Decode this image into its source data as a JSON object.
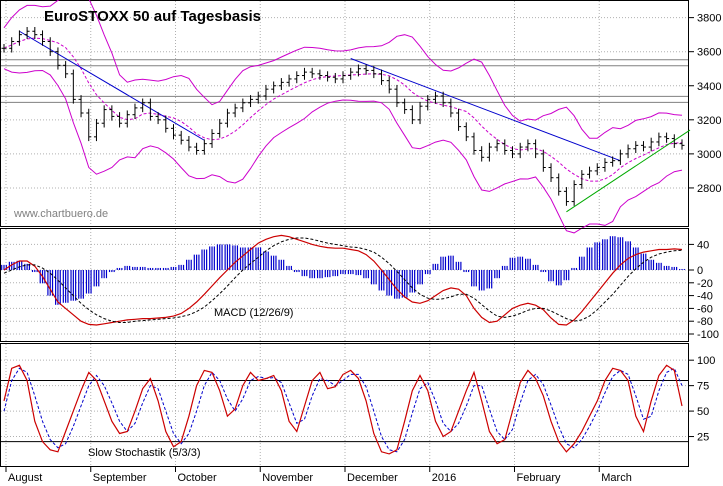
{
  "chart_data": [
    {
      "type": "line",
      "panel": "price",
      "title": "EuroSTOXX 50 auf Tagesbasis",
      "watermark": "www.chartbuero.de",
      "ylim": [
        2600,
        3880
      ],
      "yticks": [
        "2800",
        "3000",
        "3200",
        "3400",
        "3600",
        "3800"
      ],
      "horizontal_lines": [
        3535,
        3535,
        3320,
        3320
      ],
      "colors": {
        "price": "#000000",
        "bollinger": "#cc00cc",
        "trend_down": "#0000cc",
        "trend_up": "#00aa00",
        "sma": "#cc00cc"
      },
      "series": [
        {
          "values": [
            3620,
            3660,
            3700,
            3720,
            3700,
            3660,
            3600,
            3520,
            3470,
            3320,
            3240,
            3100,
            3180,
            3260,
            3220,
            3180,
            3230,
            3270,
            3300,
            3220,
            3200,
            3150,
            3110,
            3080,
            3040,
            3020,
            3060,
            3120,
            3180,
            3240,
            3270,
            3300,
            3320,
            3340,
            3380,
            3400,
            3420,
            3440,
            3460,
            3480,
            3470,
            3460,
            3450,
            3440,
            3460,
            3480,
            3500,
            3490,
            3470,
            3430,
            3380,
            3300,
            3260,
            3200,
            3280,
            3320,
            3340,
            3300,
            3240,
            3160,
            3100,
            3020,
            2980,
            3040,
            3060,
            3020,
            3000,
            3040,
            3060,
            3000,
            2920,
            2860,
            2780,
            2720,
            2820,
            2880,
            2900,
            2920,
            2950,
            2960,
            3000,
            3030,
            3050,
            3040,
            3070,
            3100,
            3090,
            3060,
            3050
          ]
        }
      ]
    },
    {
      "type": "line",
      "panel": "macd",
      "label": "MACD (12/26/9)",
      "ylim": [
        -100,
        50
      ],
      "yticks": [
        "40",
        "0",
        "-20",
        "-40",
        "-60",
        "-80",
        "-100"
      ],
      "colors": {
        "macd": "#cc0000",
        "signal": "#000000",
        "histogram": "#0000cc"
      },
      "series": [
        {
          "values": [
            0,
            8,
            14,
            14,
            6,
            -10,
            -30,
            -50,
            -60,
            -70,
            -80,
            -85,
            -86,
            -84,
            -82,
            -80,
            -78,
            -77,
            -76,
            -76,
            -75,
            -74,
            -72,
            -68,
            -60,
            -50,
            -38,
            -25,
            -12,
            0,
            12,
            22,
            32,
            42,
            48,
            52,
            54,
            52,
            48,
            44,
            40,
            37,
            35,
            34,
            34,
            32,
            30,
            24,
            14,
            0,
            -15,
            -30,
            -42,
            -50,
            -52,
            -48,
            -40,
            -32,
            -28,
            -30,
            -40,
            -60,
            -74,
            -82,
            -80,
            -70,
            -60,
            -55,
            -52,
            -55,
            -62,
            -75,
            -85,
            -86,
            -78,
            -65,
            -50,
            -35,
            -20,
            -5,
            8,
            18,
            24,
            28,
            30,
            32,
            32,
            33,
            32
          ]
        },
        {
          "values": [
            -5,
            0,
            5,
            8,
            8,
            3,
            -5,
            -16,
            -28,
            -40,
            -52,
            -62,
            -70,
            -76,
            -80,
            -82,
            -82,
            -80,
            -79,
            -78,
            -77,
            -76,
            -75,
            -73,
            -70,
            -65,
            -58,
            -48,
            -37,
            -25,
            -12,
            0,
            10,
            20,
            30,
            38,
            44,
            48,
            50,
            50,
            48,
            45,
            42,
            40,
            38,
            36,
            35,
            32,
            28,
            20,
            10,
            -2,
            -15,
            -28,
            -38,
            -44,
            -46,
            -45,
            -42,
            -38,
            -38,
            -44,
            -54,
            -64,
            -72,
            -74,
            -72,
            -68,
            -63,
            -60,
            -60,
            -64,
            -70,
            -76,
            -80,
            -78,
            -72,
            -62,
            -50,
            -38,
            -24,
            -10,
            2,
            12,
            20,
            25,
            28,
            30,
            31
          ]
        }
      ]
    },
    {
      "type": "line",
      "panel": "stochastic",
      "label": "Slow Stochastik (5/3/3)",
      "ylim": [
        0,
        110
      ],
      "yticks": [
        "100",
        "75",
        "50",
        "25"
      ],
      "horizontal_lines": [
        80,
        20
      ],
      "colors": {
        "k": "#cc0000",
        "d": "#0000cc",
        "levels": "#000000"
      },
      "series": [
        {
          "values": [
            60,
            92,
            95,
            80,
            40,
            20,
            12,
            10,
            30,
            50,
            70,
            88,
            80,
            60,
            40,
            28,
            30,
            50,
            72,
            82,
            60,
            30,
            15,
            20,
            45,
            75,
            90,
            88,
            70,
            45,
            52,
            75,
            88,
            80,
            82,
            85,
            70,
            40,
            30,
            55,
            80,
            88,
            72,
            74,
            86,
            90,
            82,
            60,
            28,
            10,
            8,
            12,
            40,
            70,
            85,
            70,
            40,
            25,
            30,
            50,
            70,
            88,
            60,
            30,
            18,
            22,
            50,
            78,
            90,
            82,
            65,
            40,
            20,
            10,
            18,
            30,
            45,
            60,
            80,
            92,
            90,
            80,
            45,
            30,
            60,
            85,
            95,
            90,
            55
          ]
        },
        {
          "values": [
            50,
            80,
            92,
            88,
            65,
            40,
            22,
            14,
            18,
            35,
            55,
            75,
            85,
            75,
            58,
            40,
            30,
            38,
            58,
            75,
            72,
            50,
            28,
            18,
            28,
            50,
            75,
            88,
            80,
            62,
            50,
            62,
            80,
            84,
            82,
            83,
            78,
            58,
            38,
            42,
            65,
            82,
            80,
            75,
            80,
            86,
            86,
            74,
            50,
            25,
            12,
            10,
            22,
            48,
            72,
            78,
            60,
            38,
            30,
            38,
            55,
            75,
            75,
            52,
            30,
            22,
            32,
            58,
            80,
            86,
            76,
            56,
            35,
            18,
            14,
            22,
            35,
            50,
            68,
            84,
            90,
            86,
            65,
            42,
            45,
            70,
            88,
            92,
            75
          ]
        }
      ]
    }
  ],
  "x_axis": {
    "labels": [
      "August",
      "September",
      "October",
      "November",
      "December",
      "2016",
      "February",
      "March"
    ]
  }
}
